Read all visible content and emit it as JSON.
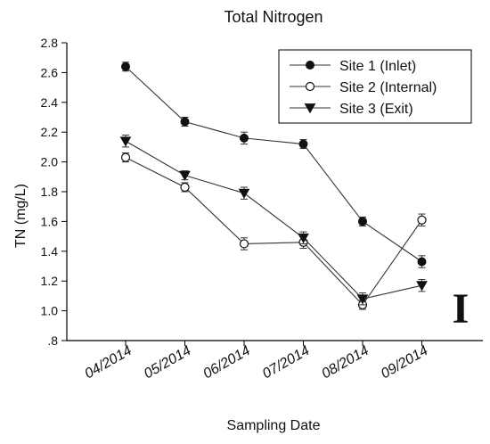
{
  "chart_data": {
    "type": "line",
    "title": "Total Nitrogen",
    "xlabel": "Sampling Date",
    "ylabel": "TN (mg/L)",
    "categories": [
      "04/2014",
      "05/2014",
      "06/2014",
      "07/2014",
      "08/2014",
      "09/2014"
    ],
    "ylim": [
      0.8,
      2.8
    ],
    "yticks": [
      0.8,
      1.0,
      1.2,
      1.4,
      1.6,
      1.8,
      2.0,
      2.2,
      2.4,
      2.6,
      2.8
    ],
    "ytick_labels": [
      ".8",
      "1.0",
      "1.2",
      "1.4",
      "1.6",
      "1.8",
      "2.0",
      "2.2",
      "2.4",
      "2.6",
      "2.8"
    ],
    "grid": false,
    "legend_position": "top-right",
    "panel_label": "I",
    "series": [
      {
        "name": "Site 1 (Inlet)",
        "marker": "filled-circle",
        "values": [
          2.64,
          2.27,
          2.16,
          2.12,
          1.6,
          1.33
        ],
        "errors": [
          0.03,
          0.03,
          0.04,
          0.03,
          0.03,
          0.04
        ]
      },
      {
        "name": "Site 2 (Internal)",
        "marker": "open-circle",
        "values": [
          2.03,
          1.83,
          1.45,
          1.46,
          1.04,
          1.61
        ],
        "errors": [
          0.03,
          0.03,
          0.04,
          0.04,
          0.03,
          0.04
        ]
      },
      {
        "name": "Site 3 (Exit)",
        "marker": "filled-triangle-down",
        "values": [
          2.14,
          1.91,
          1.79,
          1.49,
          1.08,
          1.17
        ],
        "errors": [
          0.04,
          0.03,
          0.04,
          0.04,
          0.04,
          0.04
        ]
      }
    ],
    "colors": {
      "line": "#333333",
      "marker": "#111111",
      "axis": "#000000"
    }
  }
}
